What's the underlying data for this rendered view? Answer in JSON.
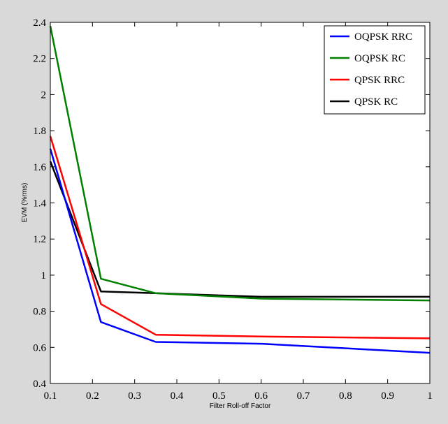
{
  "chart_data": {
    "type": "line",
    "title": "",
    "xlabel": "Filter Roll-off Factor",
    "ylabel": "EVM (%rms)",
    "xlim": [
      0.1,
      1
    ],
    "ylim": [
      0.4,
      2.4
    ],
    "xticks": [
      "0.1",
      "0.2",
      "0.3",
      "0.4",
      "0.5",
      "0.6",
      "0.7",
      "0.8",
      "0.9",
      "1"
    ],
    "yticks": [
      "0.4",
      "0.6",
      "0.8",
      "1",
      "1.2",
      "1.4",
      "1.6",
      "1.8",
      "2",
      "2.2",
      "2.4"
    ],
    "grid": false,
    "legend_position": "top-right",
    "series": [
      {
        "name": "OQPSK RRC",
        "color": "#0000ff",
        "x": [
          0.1,
          0.22,
          0.35,
          0.6,
          1
        ],
        "y": [
          1.7,
          0.74,
          0.63,
          0.62,
          0.57
        ]
      },
      {
        "name": "OQPSK RC",
        "color": "#008000",
        "x": [
          0.1,
          0.22,
          0.35,
          0.6,
          1
        ],
        "y": [
          2.38,
          0.98,
          0.9,
          0.87,
          0.86
        ]
      },
      {
        "name": "QPSK RRC",
        "color": "#ff0000",
        "x": [
          0.1,
          0.22,
          0.35,
          0.6,
          1
        ],
        "y": [
          1.77,
          0.84,
          0.67,
          0.66,
          0.65
        ]
      },
      {
        "name": "QPSK RC",
        "color": "#000000",
        "x": [
          0.1,
          0.22,
          0.35,
          0.6,
          1
        ],
        "y": [
          1.63,
          0.91,
          0.9,
          0.88,
          0.88
        ]
      }
    ]
  }
}
